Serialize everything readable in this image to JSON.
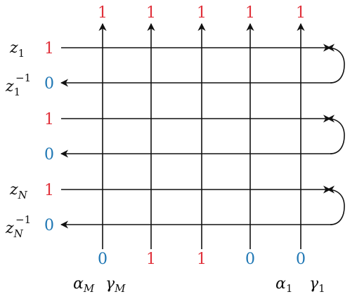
{
  "top_labels": [
    "1",
    "1",
    "1",
    "1",
    "1"
  ],
  "bottom_labels": [
    "0",
    "1",
    "1",
    "0",
    "0"
  ],
  "row_values": [
    "1",
    "0",
    "1",
    "0",
    "1",
    "0"
  ],
  "left_variables": {
    "row1_main": "z",
    "row1_sub": "1",
    "row2_main": "z",
    "row2_sub": "1",
    "row2_sup": "−1",
    "row5_main": "z",
    "row5_sub": "N",
    "row6_main": "z",
    "row6_sub": "N",
    "row6_sup": "−1"
  },
  "bottom_params": {
    "alpha_M": "α",
    "alpha_M_sub": "M",
    "gamma_M": "γ",
    "gamma_M_sub": "M",
    "alpha_1": "α",
    "alpha_1_sub": "1",
    "gamma_1": "γ",
    "gamma_1_sub": "1"
  },
  "colors": {
    "red": "#e0303a",
    "blue": "#1f77b4",
    "line": "#111111"
  }
}
